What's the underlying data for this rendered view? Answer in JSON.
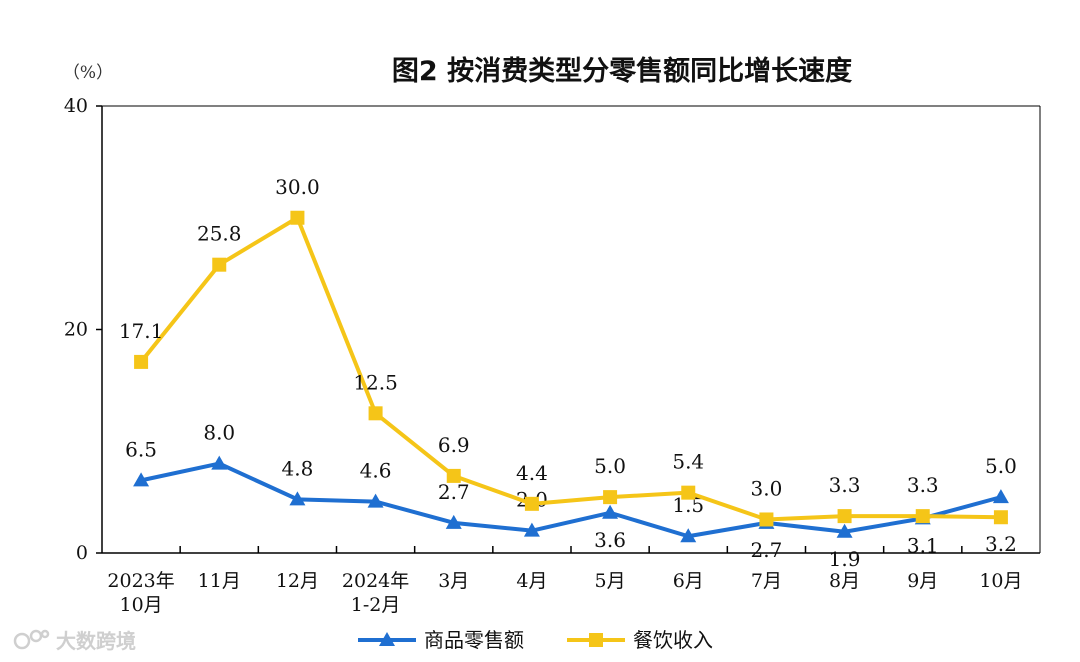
{
  "chart_data": {
    "type": "line",
    "title": "图2  按消费类型分零售额同比增长速度",
    "unit_label": "（%）",
    "ylim": [
      0,
      40
    ],
    "yticks": [
      0,
      20,
      40
    ],
    "categories": [
      [
        "2023年",
        "10月"
      ],
      [
        "11月"
      ],
      [
        "12月"
      ],
      [
        "2024年",
        "1-2月"
      ],
      [
        "3月"
      ],
      [
        "4月"
      ],
      [
        "5月"
      ],
      [
        "6月"
      ],
      [
        "7月"
      ],
      [
        "8月"
      ],
      [
        "9月"
      ],
      [
        "10月"
      ]
    ],
    "series": [
      {
        "name": "商品零售额",
        "color": "#1f6fd1",
        "marker": "triangle",
        "values": [
          6.5,
          8.0,
          4.8,
          4.6,
          2.7,
          2.0,
          3.6,
          1.5,
          2.7,
          1.9,
          3.1,
          5.0
        ],
        "labels": [
          "6.5",
          "8.0",
          "4.8",
          "4.6",
          "2.7",
          "2.0",
          "3.6",
          "1.5",
          "2.7",
          "1.9",
          "3.1",
          "5.0"
        ],
        "label_pos": [
          "above",
          "above",
          "above",
          "above",
          "above",
          "above",
          "below",
          "above",
          "below",
          "below",
          "below",
          "above"
        ]
      },
      {
        "name": "餐饮收入",
        "color": "#f5c518",
        "marker": "square",
        "values": [
          17.1,
          25.8,
          30.0,
          12.5,
          6.9,
          4.4,
          5.0,
          5.4,
          3.0,
          3.3,
          3.3,
          3.2
        ],
        "labels": [
          "17.1",
          "25.8",
          "30.0",
          "12.5",
          "6.9",
          "4.4",
          "5.0",
          "5.4",
          "3.0",
          "3.3",
          "3.3",
          "3.2"
        ],
        "label_pos": [
          "above",
          "above",
          "above",
          "above",
          "above",
          "above",
          "above",
          "above",
          "above",
          "above",
          "above",
          "below"
        ]
      }
    ],
    "legend": "bottom-center"
  },
  "watermark": "大数跨境"
}
